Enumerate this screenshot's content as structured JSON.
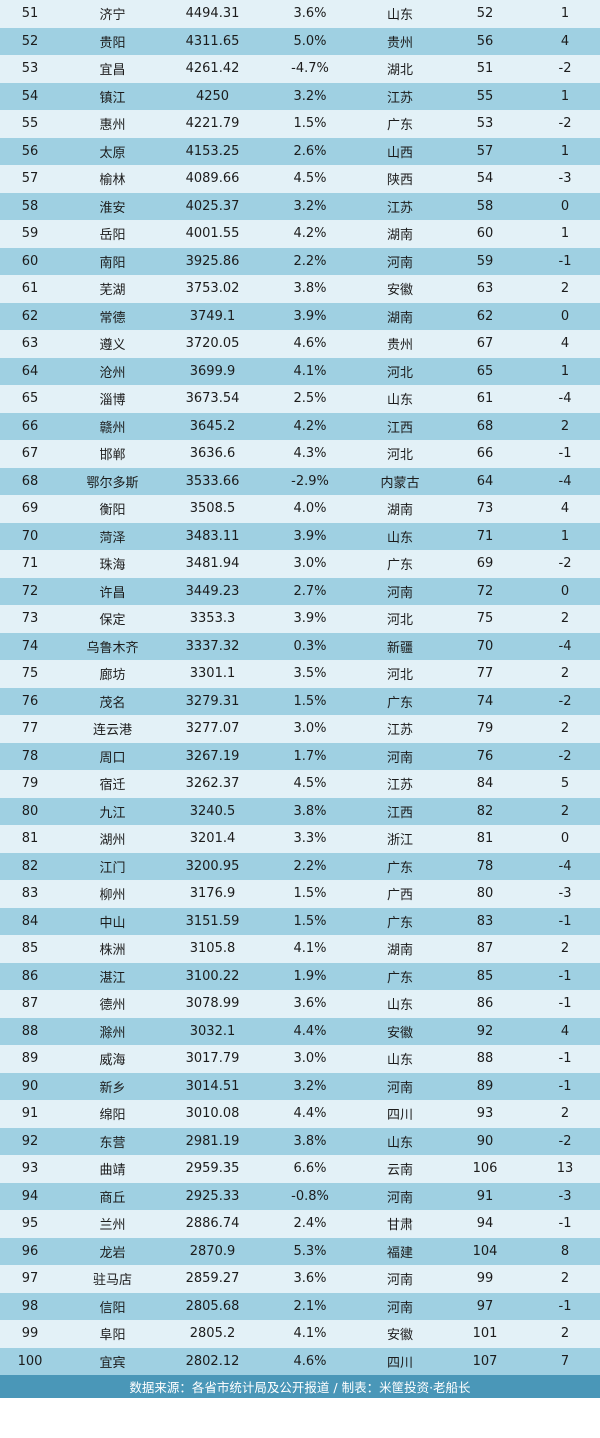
{
  "rows": [
    [
      "51",
      "济宁",
      "4494.31",
      "3.6%",
      "山东",
      "52",
      "1"
    ],
    [
      "52",
      "贵阳",
      "4311.65",
      "5.0%",
      "贵州",
      "56",
      "4"
    ],
    [
      "53",
      "宜昌",
      "4261.42",
      "-4.7%",
      "湖北",
      "51",
      "-2"
    ],
    [
      "54",
      "镇江",
      "4250",
      "3.2%",
      "江苏",
      "55",
      "1"
    ],
    [
      "55",
      "惠州",
      "4221.79",
      "1.5%",
      "广东",
      "53",
      "-2"
    ],
    [
      "56",
      "太原",
      "4153.25",
      "2.6%",
      "山西",
      "57",
      "1"
    ],
    [
      "57",
      "榆林",
      "4089.66",
      "4.5%",
      "陕西",
      "54",
      "-3"
    ],
    [
      "58",
      "淮安",
      "4025.37",
      "3.2%",
      "江苏",
      "58",
      "0"
    ],
    [
      "59",
      "岳阳",
      "4001.55",
      "4.2%",
      "湖南",
      "60",
      "1"
    ],
    [
      "60",
      "南阳",
      "3925.86",
      "2.2%",
      "河南",
      "59",
      "-1"
    ],
    [
      "61",
      "芜湖",
      "3753.02",
      "3.8%",
      "安徽",
      "63",
      "2"
    ],
    [
      "62",
      "常德",
      "3749.1",
      "3.9%",
      "湖南",
      "62",
      "0"
    ],
    [
      "63",
      "遵义",
      "3720.05",
      "4.6%",
      "贵州",
      "67",
      "4"
    ],
    [
      "64",
      "沧州",
      "3699.9",
      "4.1%",
      "河北",
      "65",
      "1"
    ],
    [
      "65",
      "淄博",
      "3673.54",
      "2.5%",
      "山东",
      "61",
      "-4"
    ],
    [
      "66",
      "赣州",
      "3645.2",
      "4.2%",
      "江西",
      "68",
      "2"
    ],
    [
      "67",
      "邯郸",
      "3636.6",
      "4.3%",
      "河北",
      "66",
      "-1"
    ],
    [
      "68",
      "鄂尔多斯",
      "3533.66",
      "-2.9%",
      "内蒙古",
      "64",
      "-4"
    ],
    [
      "69",
      "衡阳",
      "3508.5",
      "4.0%",
      "湖南",
      "73",
      "4"
    ],
    [
      "70",
      "菏泽",
      "3483.11",
      "3.9%",
      "山东",
      "71",
      "1"
    ],
    [
      "71",
      "珠海",
      "3481.94",
      "3.0%",
      "广东",
      "69",
      "-2"
    ],
    [
      "72",
      "许昌",
      "3449.23",
      "2.7%",
      "河南",
      "72",
      "0"
    ],
    [
      "73",
      "保定",
      "3353.3",
      "3.9%",
      "河北",
      "75",
      "2"
    ],
    [
      "74",
      "乌鲁木齐",
      "3337.32",
      "0.3%",
      "新疆",
      "70",
      "-4"
    ],
    [
      "75",
      "廊坊",
      "3301.1",
      "3.5%",
      "河北",
      "77",
      "2"
    ],
    [
      "76",
      "茂名",
      "3279.31",
      "1.5%",
      "广东",
      "74",
      "-2"
    ],
    [
      "77",
      "连云港",
      "3277.07",
      "3.0%",
      "江苏",
      "79",
      "2"
    ],
    [
      "78",
      "周口",
      "3267.19",
      "1.7%",
      "河南",
      "76",
      "-2"
    ],
    [
      "79",
      "宿迁",
      "3262.37",
      "4.5%",
      "江苏",
      "84",
      "5"
    ],
    [
      "80",
      "九江",
      "3240.5",
      "3.8%",
      "江西",
      "82",
      "2"
    ],
    [
      "81",
      "湖州",
      "3201.4",
      "3.3%",
      "浙江",
      "81",
      "0"
    ],
    [
      "82",
      "江门",
      "3200.95",
      "2.2%",
      "广东",
      "78",
      "-4"
    ],
    [
      "83",
      "柳州",
      "3176.9",
      "1.5%",
      "广西",
      "80",
      "-3"
    ],
    [
      "84",
      "中山",
      "3151.59",
      "1.5%",
      "广东",
      "83",
      "-1"
    ],
    [
      "85",
      "株洲",
      "3105.8",
      "4.1%",
      "湖南",
      "87",
      "2"
    ],
    [
      "86",
      "湛江",
      "3100.22",
      "1.9%",
      "广东",
      "85",
      "-1"
    ],
    [
      "87",
      "德州",
      "3078.99",
      "3.6%",
      "山东",
      "86",
      "-1"
    ],
    [
      "88",
      "滁州",
      "3032.1",
      "4.4%",
      "安徽",
      "92",
      "4"
    ],
    [
      "89",
      "威海",
      "3017.79",
      "3.0%",
      "山东",
      "88",
      "-1"
    ],
    [
      "90",
      "新乡",
      "3014.51",
      "3.2%",
      "河南",
      "89",
      "-1"
    ],
    [
      "91",
      "绵阳",
      "3010.08",
      "4.4%",
      "四川",
      "93",
      "2"
    ],
    [
      "92",
      "东营",
      "2981.19",
      "3.8%",
      "山东",
      "90",
      "-2"
    ],
    [
      "93",
      "曲靖",
      "2959.35",
      "6.6%",
      "云南",
      "106",
      "13"
    ],
    [
      "94",
      "商丘",
      "2925.33",
      "-0.8%",
      "河南",
      "91",
      "-3"
    ],
    [
      "95",
      "兰州",
      "2886.74",
      "2.4%",
      "甘肃",
      "94",
      "-1"
    ],
    [
      "96",
      "龙岩",
      "2870.9",
      "5.3%",
      "福建",
      "104",
      "8"
    ],
    [
      "97",
      "驻马店",
      "2859.27",
      "3.6%",
      "河南",
      "99",
      "2"
    ],
    [
      "98",
      "信阳",
      "2805.68",
      "2.1%",
      "河南",
      "97",
      "-1"
    ],
    [
      "99",
      "阜阳",
      "2805.2",
      "4.1%",
      "安徽",
      "101",
      "2"
    ],
    [
      "100",
      "宜宾",
      "2802.12",
      "4.6%",
      "四川",
      "107",
      "7"
    ]
  ],
  "footer": {
    "text": "数据来源：各省市统计局及公开报道 / 制表：米筐投资·老船长"
  },
  "colors": {
    "row_light": "#e3f1f7",
    "row_dark": "#9fd0e2",
    "footer_bg": "#4a97b8"
  }
}
